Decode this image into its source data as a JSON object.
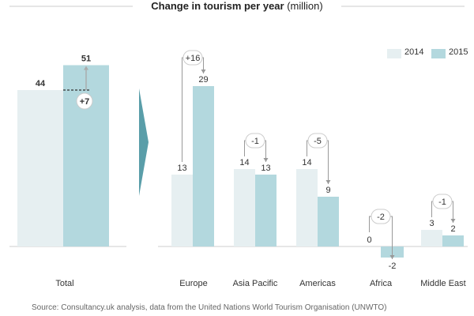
{
  "title": "Change in tourism per year",
  "title_unit": "(million)",
  "source": "Source: Consultancy.uk analysis, data from the United Nations World Tourism Organisation (UNWTO)",
  "colors": {
    "y2014": "#e6eff1",
    "y2015": "#b3d8de",
    "arrow": "#5a9ea9",
    "baseline": "#cccccc"
  },
  "chart_data": {
    "type": "bar",
    "categories": [
      "Total",
      "Europe",
      "Asia Pacific",
      "Americas",
      "Africa",
      "Middle East"
    ],
    "series": [
      {
        "name": "2014",
        "values": [
          44,
          13,
          14,
          14,
          0,
          3
        ]
      },
      {
        "name": "2015",
        "values": [
          51,
          29,
          13,
          9,
          -2,
          2
        ]
      }
    ],
    "changes": [
      "+7",
      "+16",
      "-1",
      "-5",
      "-2",
      "-1"
    ],
    "legend": [
      "2014",
      "2015"
    ],
    "legend_position": "top-right",
    "grid": false
  }
}
